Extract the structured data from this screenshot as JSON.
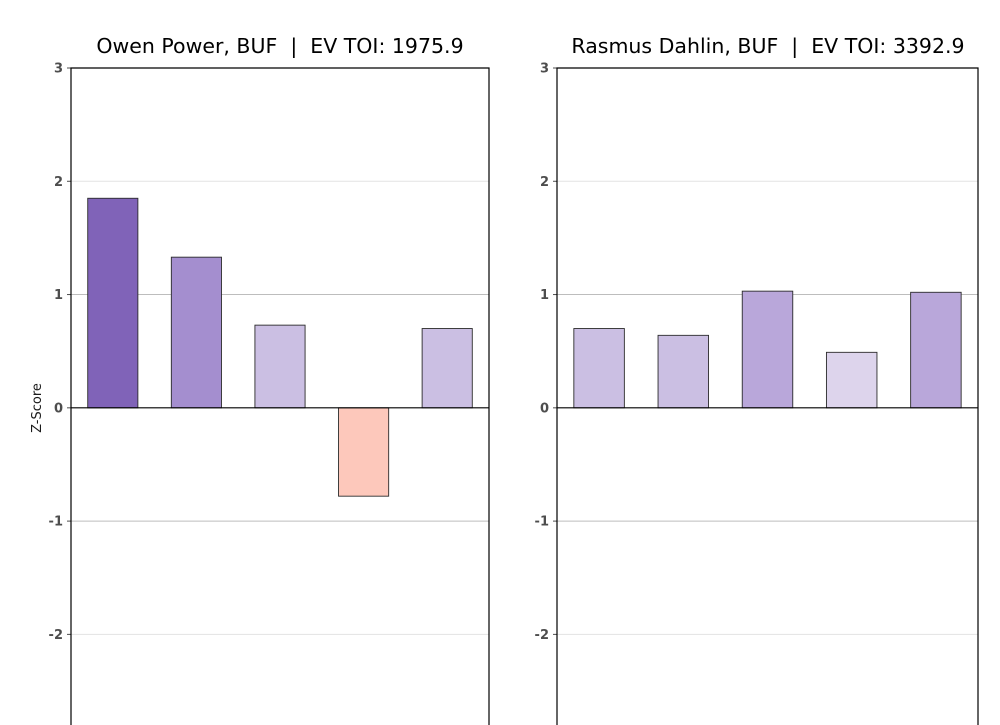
{
  "chart_data": [
    {
      "type": "bar",
      "title": "Owen Power, BUF  |  EV TOI: 1975.9",
      "ylabel": "Z-Score",
      "xlabel": "",
      "ylim": [
        -2.8,
        3
      ],
      "yticks": [
        3,
        2,
        1,
        0,
        -1,
        -2
      ],
      "grid": "horizontal",
      "values": [
        1.85,
        1.33,
        0.73,
        -0.78,
        0.7
      ],
      "colors": [
        "#8063b8",
        "#a48ecf",
        "#cbbfe3",
        "#fdc8bb",
        "#cbbfe3"
      ]
    },
    {
      "type": "bar",
      "title": "Rasmus Dahlin, BUF  |  EV TOI: 3392.9",
      "ylabel": "",
      "xlabel": "",
      "ylim": [
        -2.8,
        3
      ],
      "yticks": [
        3,
        2,
        1,
        0,
        -1,
        -2
      ],
      "grid": "horizontal",
      "values": [
        0.7,
        0.64,
        1.03,
        0.49,
        1.02
      ],
      "colors": [
        "#cbbfe3",
        "#cbbfe3",
        "#b9a7da",
        "#ddd4ec",
        "#b9a7da"
      ]
    }
  ]
}
